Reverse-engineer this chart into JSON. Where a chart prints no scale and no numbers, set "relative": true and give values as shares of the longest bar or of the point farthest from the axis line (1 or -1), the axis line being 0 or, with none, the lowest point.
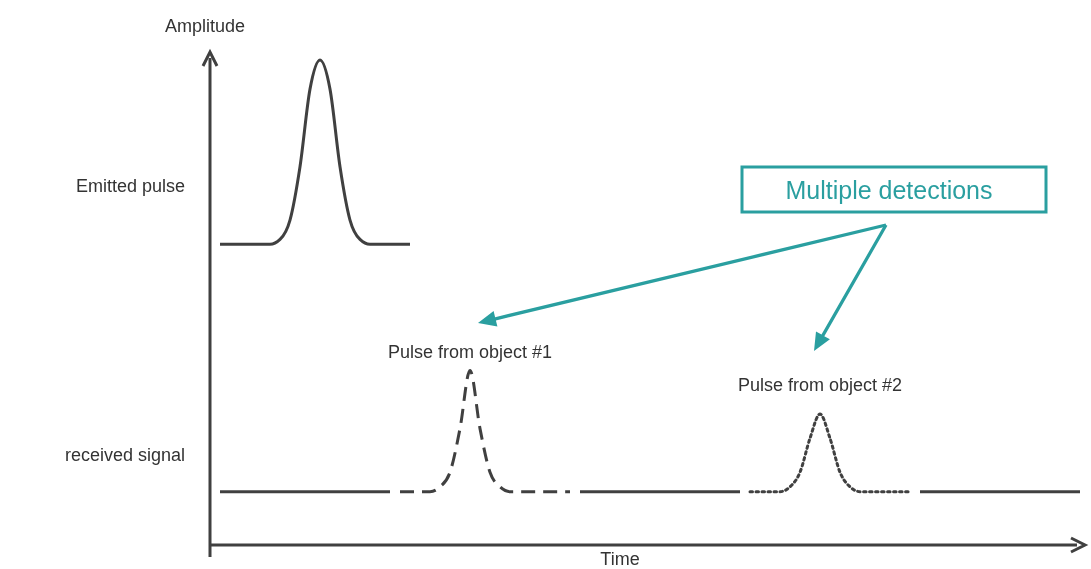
{
  "chart_data": {
    "type": "line",
    "relative": true,
    "xlabel": "Time",
    "ylabel": "Amplitude",
    "categories": [
      null,
      null,
      null,
      null,
      null,
      null,
      null,
      null,
      null,
      null,
      null,
      null,
      null,
      null,
      null,
      null,
      null,
      null,
      null,
      null,
      null,
      null,
      null,
      null,
      null,
      null,
      null,
      null,
      null,
      null,
      null,
      null,
      null,
      null,
      null,
      null,
      null,
      null,
      null,
      null,
      null,
      null,
      null,
      null,
      null,
      null,
      null,
      null,
      null,
      null,
      null,
      null,
      null,
      null,
      null,
      null,
      null,
      null,
      null,
      null,
      null,
      null,
      null,
      null,
      null,
      null,
      null,
      null,
      null,
      null,
      null,
      null,
      null,
      null,
      null,
      null,
      null,
      null,
      null,
      null,
      null,
      null,
      null,
      null,
      null,
      null,
      null
    ],
    "series": [
      {
        "color": "#404040",
        "line_style": "solid",
        "values": [
          0.62,
          0.62,
          0.62,
          0.62,
          0.62,
          0.62,
          0.63,
          0.67,
          0.78,
          0.94,
          1,
          0.94,
          0.78,
          0.67,
          0.63,
          0.62,
          0.62,
          0.62,
          0.62,
          0.62,
          null,
          null,
          null,
          null,
          null,
          null,
          null,
          null,
          null,
          null,
          null,
          null,
          null,
          null,
          null,
          null,
          null,
          null,
          null,
          null,
          null,
          null,
          null,
          null,
          null,
          null,
          null,
          null,
          null,
          null,
          null,
          null,
          null,
          null,
          null,
          null,
          null,
          null,
          null,
          null,
          null,
          null,
          null,
          null,
          null,
          null,
          null,
          null,
          null,
          null,
          null,
          null,
          null,
          null,
          null,
          null,
          null,
          null,
          null,
          null,
          null,
          null,
          null,
          null,
          null,
          null,
          null
        ]
      },
      {
        "color": "#404040",
        "line_style": "solid",
        "values": [
          0.11,
          0.11,
          0.11,
          0.11,
          0.11,
          0.11,
          0.11,
          0.11,
          0.11,
          0.11,
          0.11,
          0.11,
          0.11,
          0.11,
          0.11,
          0.11,
          0.11,
          0.11,
          null,
          null,
          null,
          null,
          null,
          null,
          null,
          null,
          null,
          null,
          null,
          null,
          null,
          null,
          null,
          null,
          null,
          null,
          null,
          null,
          null,
          null,
          null,
          null,
          null,
          null,
          null,
          null,
          null,
          null,
          null,
          null,
          null,
          null,
          null,
          null,
          null,
          null,
          null,
          null,
          null,
          null,
          null,
          null,
          null,
          null,
          null,
          null,
          null,
          null,
          null,
          null,
          null,
          null,
          null,
          null,
          null,
          null,
          null,
          null,
          null,
          null,
          null,
          null,
          null,
          null,
          null,
          null,
          null
        ]
      },
      {
        "color": "#404040",
        "line_style": "dashed",
        "values": [
          null,
          null,
          null,
          null,
          null,
          null,
          null,
          null,
          null,
          null,
          null,
          null,
          null,
          null,
          null,
          null,
          null,
          null,
          0.11,
          0.11,
          0.11,
          0.11,
          0.12,
          0.15,
          0.24,
          0.36,
          0.24,
          0.15,
          0.12,
          0.11,
          0.11,
          0.11,
          0.11,
          0.11,
          0.11,
          0.11,
          null,
          null,
          null,
          null,
          null,
          null,
          null,
          null,
          null,
          null,
          null,
          null,
          null,
          null,
          null,
          null,
          null,
          null,
          null,
          null,
          null,
          null,
          null,
          null,
          null,
          null,
          null,
          null,
          null,
          null,
          null,
          null,
          null,
          null,
          null,
          null,
          null,
          null,
          null,
          null,
          null,
          null,
          null,
          null,
          null,
          null,
          null,
          null,
          null,
          null,
          null
        ]
      },
      {
        "color": "#404040",
        "line_style": "solid",
        "values": [
          null,
          null,
          null,
          null,
          null,
          null,
          null,
          null,
          null,
          null,
          null,
          null,
          null,
          null,
          null,
          null,
          null,
          null,
          null,
          null,
          null,
          null,
          null,
          null,
          null,
          null,
          null,
          null,
          null,
          null,
          null,
          null,
          null,
          null,
          null,
          null,
          0.11,
          0.11,
          0.11,
          0.11,
          0.11,
          0.11,
          0.11,
          0.11,
          0.11,
          0.11,
          0.11,
          0.11,
          0.11,
          0.11,
          0.11,
          0.11,
          0.11,
          null,
          null,
          null,
          null,
          null,
          null,
          null,
          null,
          null,
          null,
          null,
          null,
          null,
          null,
          null,
          null,
          null,
          null,
          null,
          null,
          null,
          null,
          null,
          null,
          null,
          null,
          null,
          null,
          null,
          null,
          null,
          null,
          null,
          null
        ]
      },
      {
        "color": "#404040",
        "line_style": "dotted",
        "values": [
          null,
          null,
          null,
          null,
          null,
          null,
          null,
          null,
          null,
          null,
          null,
          null,
          null,
          null,
          null,
          null,
          null,
          null,
          null,
          null,
          null,
          null,
          null,
          null,
          null,
          null,
          null,
          null,
          null,
          null,
          null,
          null,
          null,
          null,
          null,
          null,
          null,
          null,
          null,
          null,
          null,
          null,
          null,
          null,
          null,
          null,
          null,
          null,
          null,
          null,
          null,
          null,
          null,
          0.11,
          0.11,
          0.11,
          0.11,
          0.12,
          0.15,
          0.22,
          0.27,
          0.22,
          0.15,
          0.12,
          0.11,
          0.11,
          0.11,
          0.11,
          0.11,
          0.11,
          null,
          null,
          null,
          null,
          null,
          null,
          null,
          null,
          null,
          null,
          null,
          null,
          null,
          null,
          null,
          null,
          null
        ]
      },
      {
        "color": "#404040",
        "line_style": "solid",
        "values": [
          null,
          null,
          null,
          null,
          null,
          null,
          null,
          null,
          null,
          null,
          null,
          null,
          null,
          null,
          null,
          null,
          null,
          null,
          null,
          null,
          null,
          null,
          null,
          null,
          null,
          null,
          null,
          null,
          null,
          null,
          null,
          null,
          null,
          null,
          null,
          null,
          null,
          null,
          null,
          null,
          null,
          null,
          null,
          null,
          null,
          null,
          null,
          null,
          null,
          null,
          null,
          null,
          null,
          null,
          null,
          null,
          null,
          null,
          null,
          null,
          null,
          null,
          null,
          null,
          null,
          null,
          null,
          null,
          null,
          null,
          0.11,
          0.11,
          0.11,
          0.11,
          0.11,
          0.11,
          0.11,
          0.11,
          0.11,
          0.11,
          0.11,
          0.11,
          0.11,
          0.11,
          0.11,
          0.11,
          0.11
        ]
      }
    ],
    "annotations": [
      "Emitted pulse",
      "received signal",
      "Pulse from object #1",
      "Pulse from object #2",
      "Multiple detections"
    ]
  }
}
